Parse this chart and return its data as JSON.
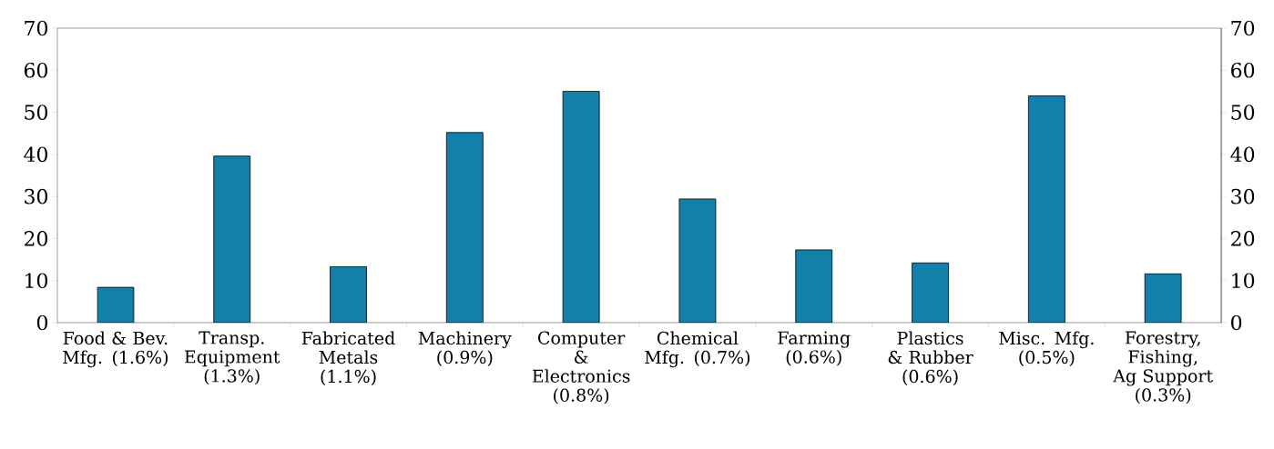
{
  "chart_data": {
    "type": "bar",
    "categories": [
      "Food & Bev. Mfg. (1.6%)",
      "Transp. Equipment (1.3%)",
      "Fabricated Metals (1.1%)",
      "Machinery (0.9%)",
      "Computer & Electronics (0.8%)",
      "Chemical Mfg. (0.7%)",
      "Farming (0.6%)",
      "Plastics & Rubber (0.6%)",
      "Misc. Mfg. (0.5%)",
      "Forestry, Fishing, Ag Support (0.3%)"
    ],
    "values": [
      8.4,
      39.6,
      13.3,
      45.2,
      55.0,
      29.4,
      17.3,
      14.2,
      53.9,
      11.6
    ],
    "color": "#1380a9",
    "ylim": [
      0,
      70
    ],
    "yticks": [
      0,
      10,
      20,
      30,
      40,
      50,
      60,
      70
    ],
    "y2lim": [
      0,
      70
    ],
    "y2ticks": [
      0,
      10,
      20,
      30,
      40,
      50,
      60,
      70
    ]
  }
}
